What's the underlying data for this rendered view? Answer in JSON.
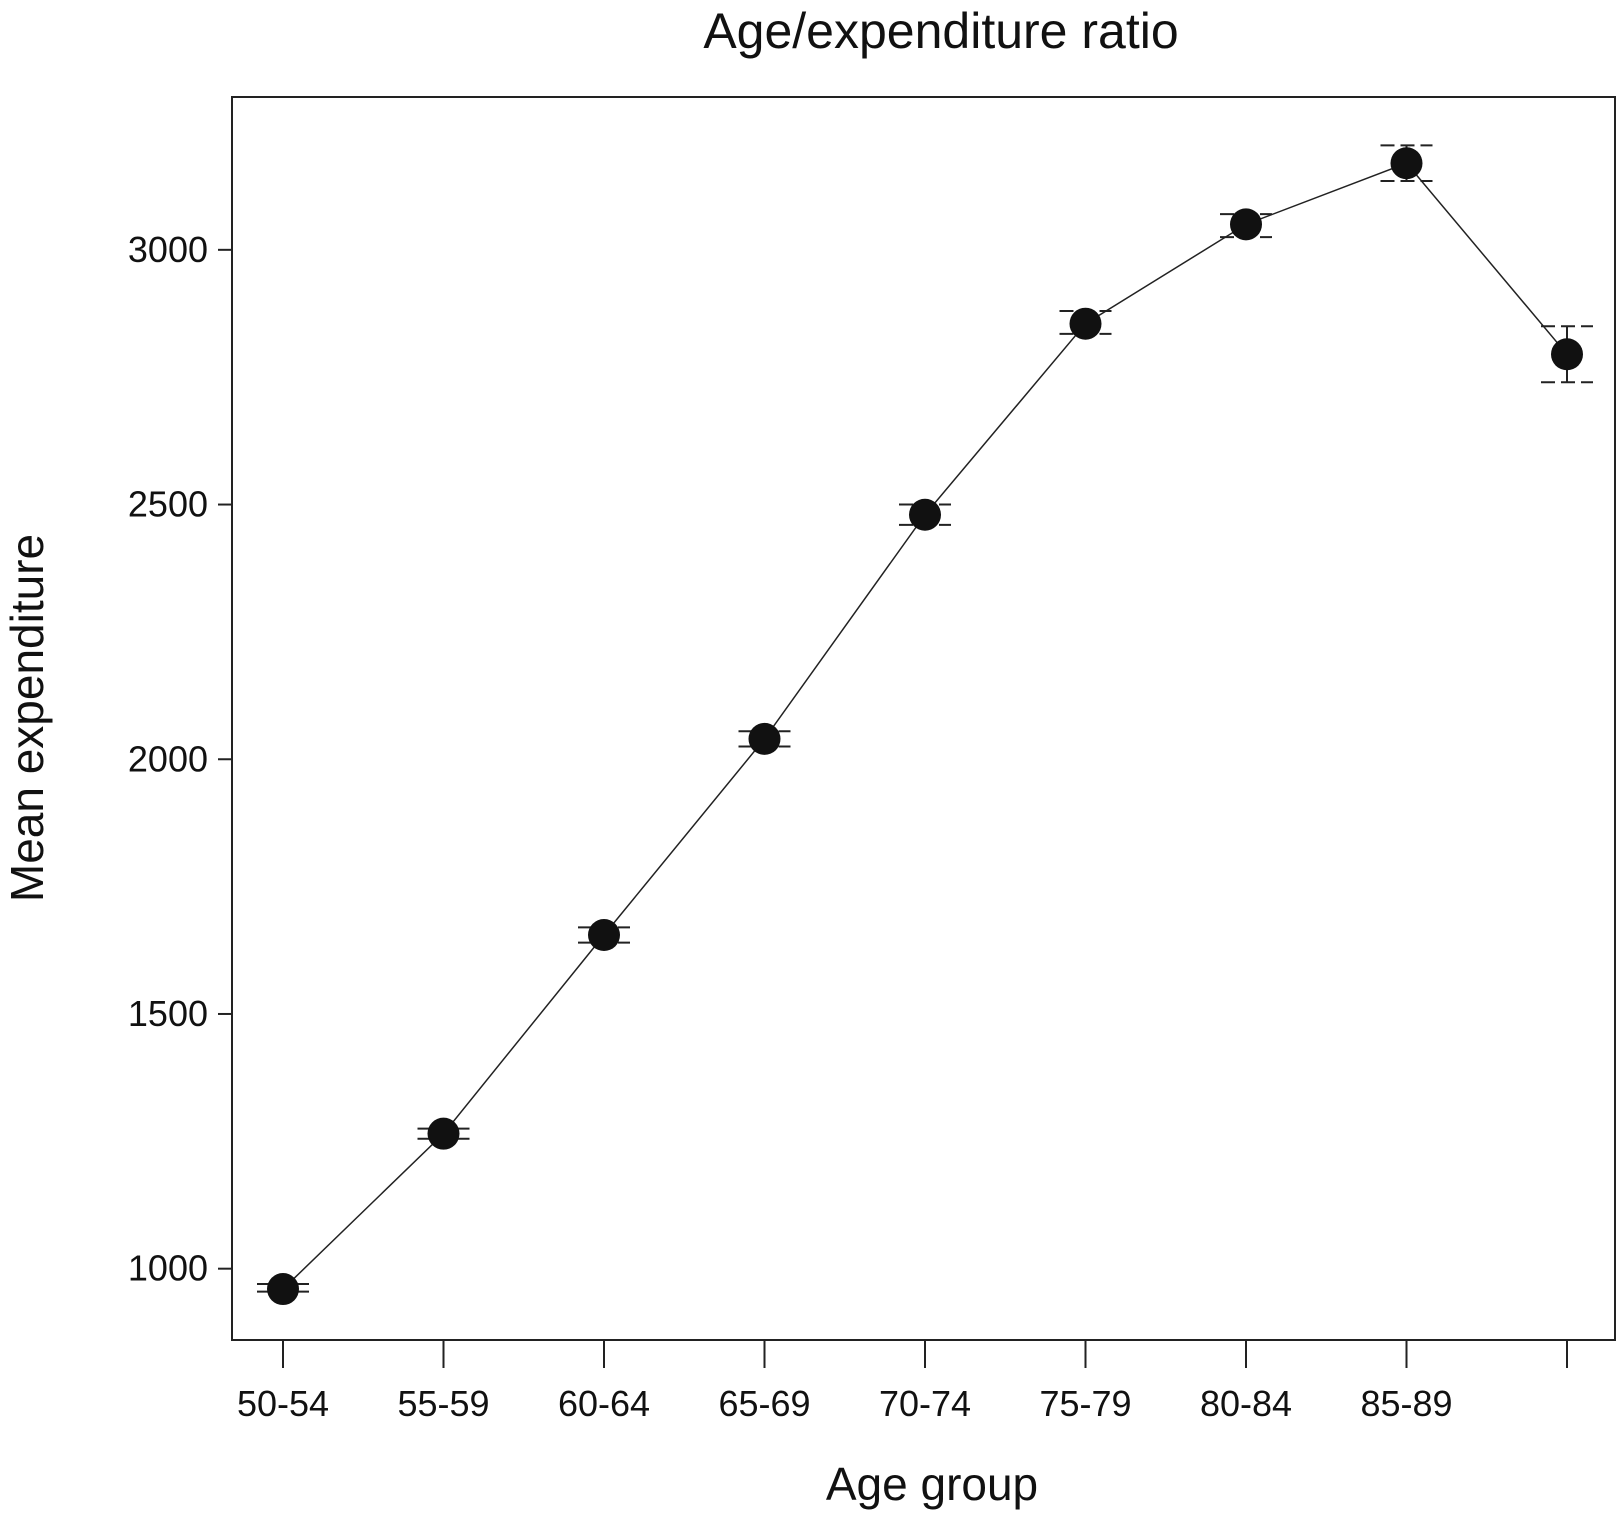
{
  "chart_data": {
    "type": "line",
    "title": "Age/expenditure ratio",
    "xlabel": "Age group",
    "ylabel": "Mean expenditure",
    "categories": [
      "50-54",
      "55-59",
      "60-64",
      "65-69",
      "70-74",
      "75-79",
      "80-84",
      "85-89",
      ""
    ],
    "series": [
      {
        "values": [
          960,
          1265,
          1655,
          2040,
          2480,
          2855,
          3050,
          3170,
          2795
        ],
        "error_low": [
          955,
          1255,
          1640,
          2025,
          2460,
          2835,
          3025,
          3135,
          2740
        ],
        "error_high": [
          970,
          1275,
          1670,
          2055,
          2500,
          2880,
          3070,
          3205,
          2850
        ]
      }
    ],
    "yticks": [
      1000,
      1500,
      2000,
      2500,
      3000
    ],
    "ylim": [
      860,
      3300
    ],
    "grid": false,
    "legend": "none"
  }
}
